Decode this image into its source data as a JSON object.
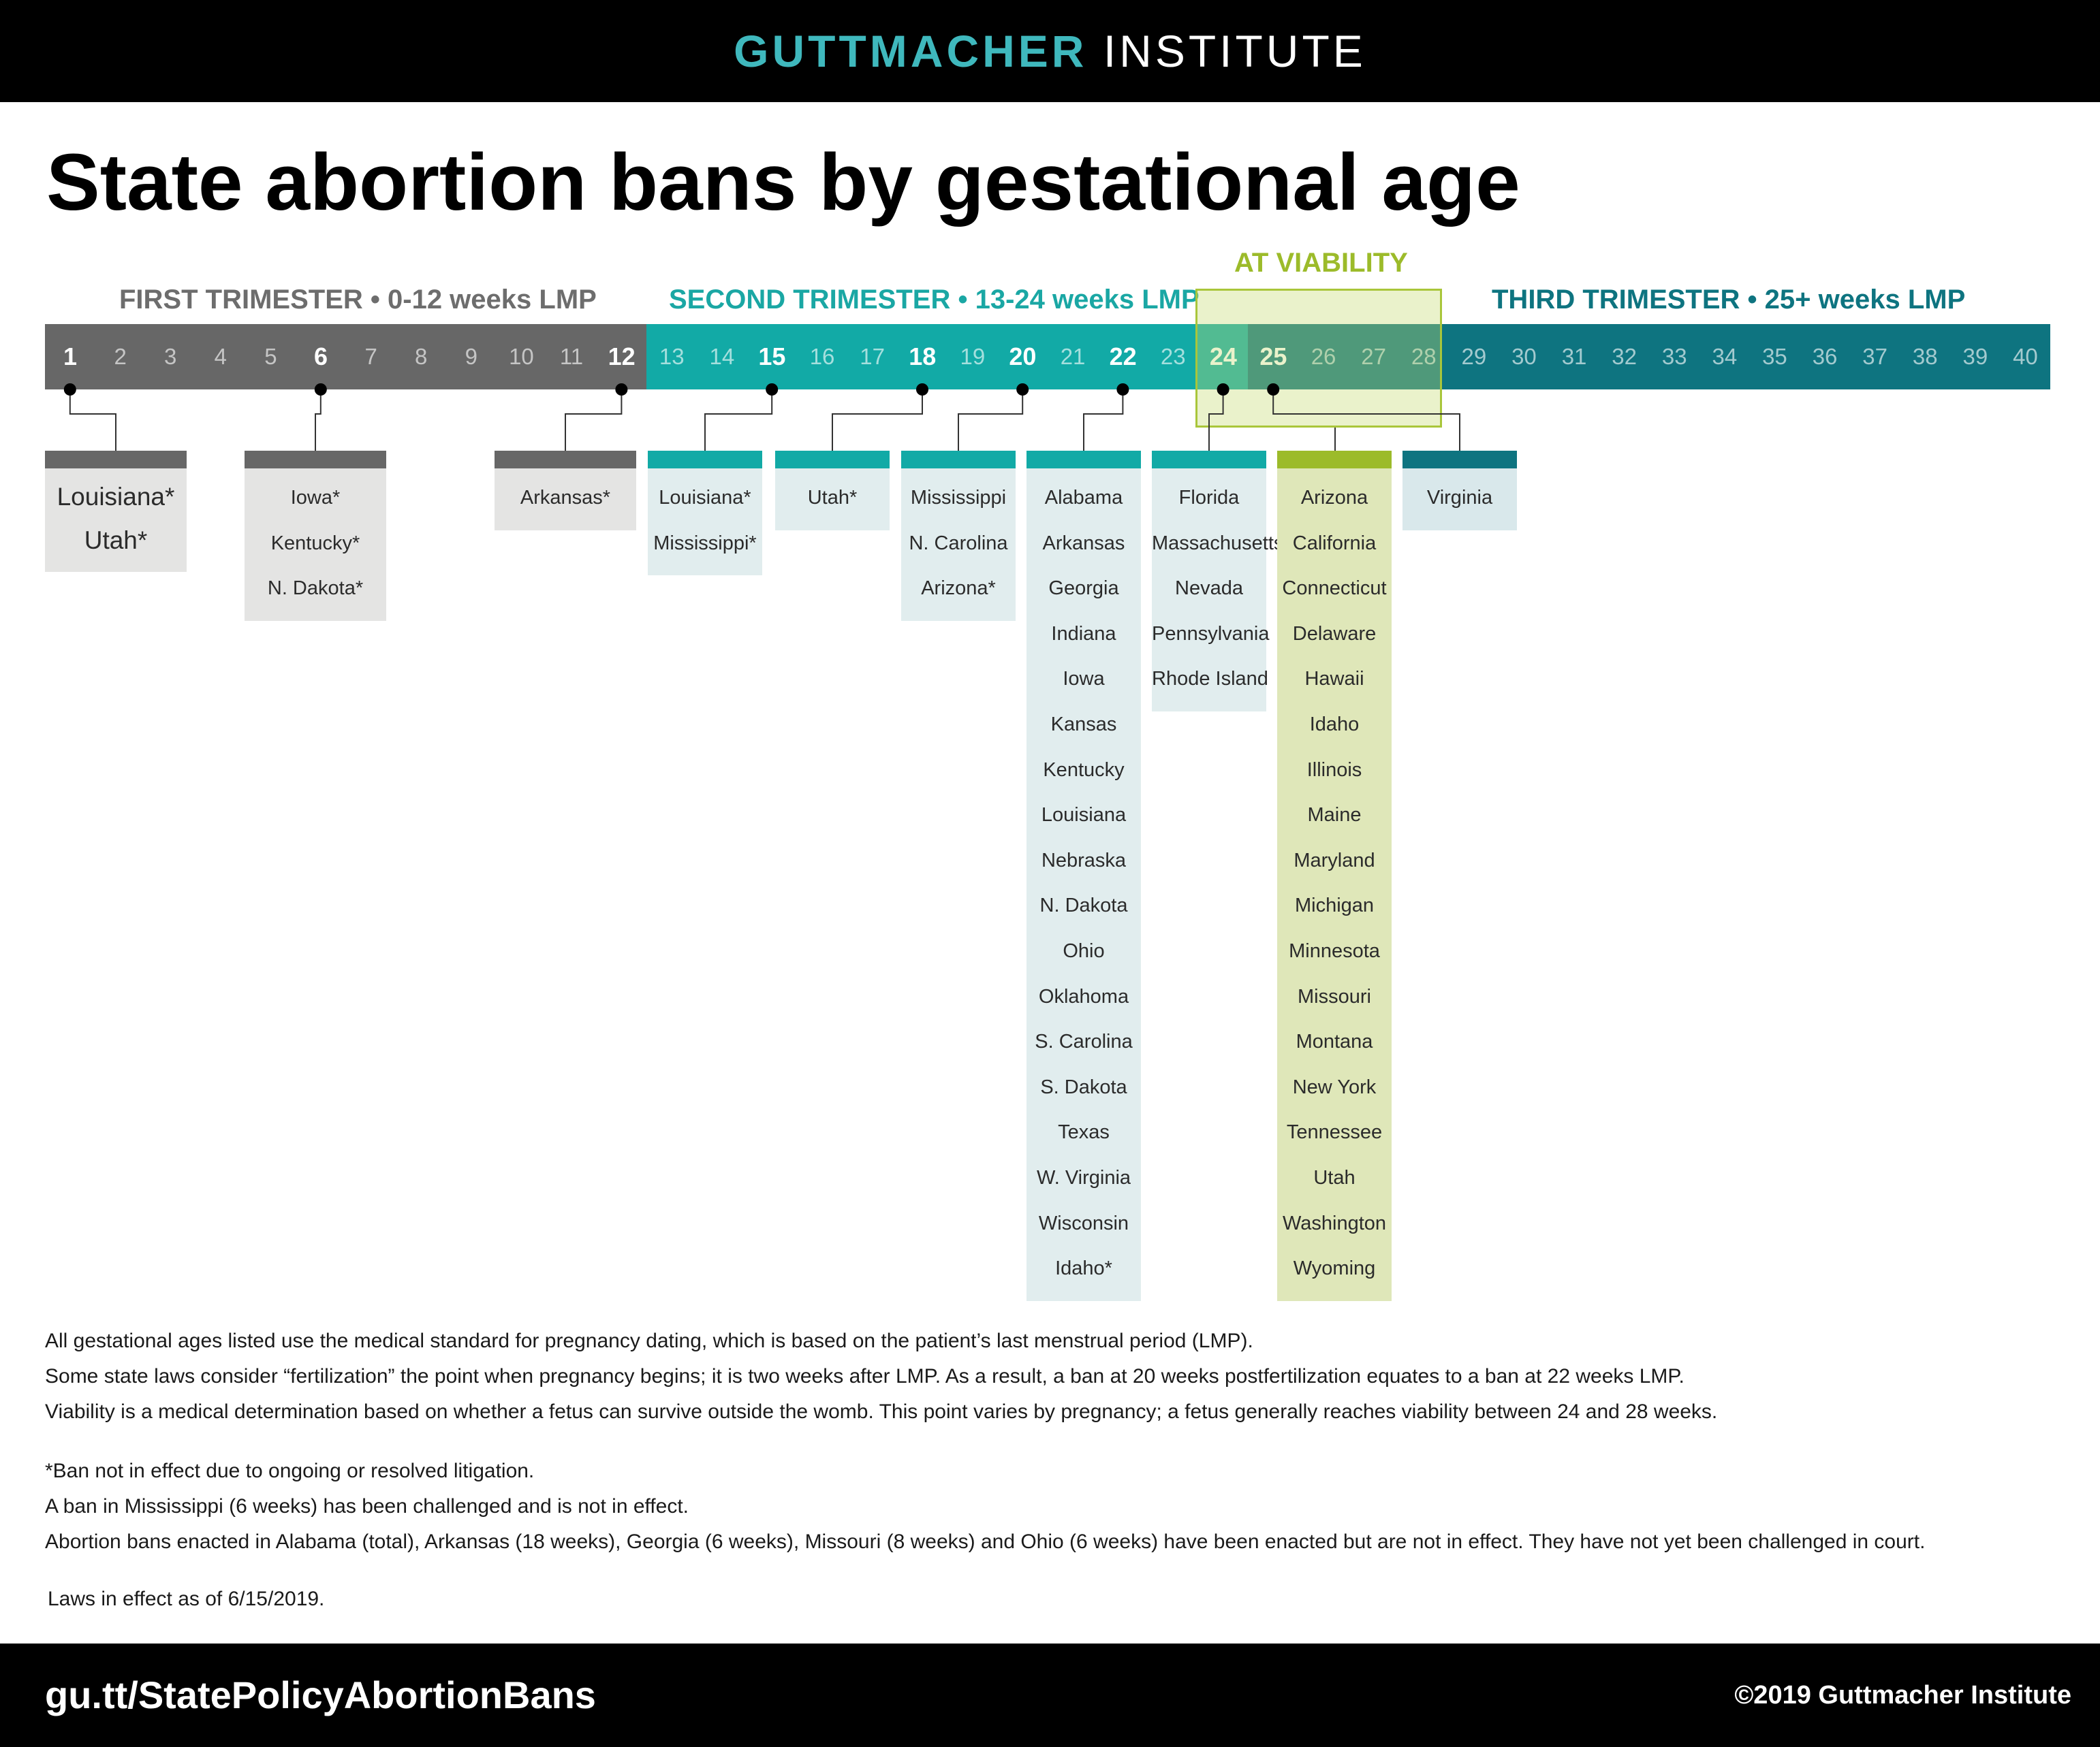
{
  "header": {
    "brand_primary": "GUTTMACHER",
    "brand_secondary": "INSTITUTE"
  },
  "title": "State abortion bans by gestational age",
  "colors": {
    "first_trimester": "#676767",
    "second_trimester": "#12aaa6",
    "third_trimester": "#0e7480",
    "viability": "#9cbb2a",
    "header_bg": "#000000",
    "brand_accent": "#3fb8bd"
  },
  "chart_data": {
    "type": "timeline",
    "title": "State abortion bans by gestational age",
    "x_unit": "weeks LMP",
    "x_range": [
      1,
      40
    ],
    "weeks": [
      1,
      2,
      3,
      4,
      5,
      6,
      7,
      8,
      9,
      10,
      11,
      12,
      13,
      14,
      15,
      16,
      17,
      18,
      19,
      20,
      21,
      22,
      23,
      24,
      25,
      26,
      27,
      28,
      29,
      30,
      31,
      32,
      33,
      34,
      35,
      36,
      37,
      38,
      39,
      40
    ],
    "highlighted_weeks": [
      1,
      6,
      12,
      15,
      18,
      20,
      22,
      24,
      25
    ],
    "trimesters": [
      {
        "name": "first",
        "label": "FIRST TRIMESTER • 0-12 weeks LMP",
        "start_week": 1,
        "end_week": 12
      },
      {
        "name": "second",
        "label": "SECOND TRIMESTER • 13-24 weeks LMP",
        "start_week": 13,
        "end_week": 24
      },
      {
        "name": "third",
        "label": "THIRD TRIMESTER • 25+ weeks LMP",
        "start_week": 25,
        "end_week": 40
      }
    ],
    "viability": {
      "label": "AT VIABILITY",
      "start_week": 24,
      "end_week": 28
    },
    "bans": [
      {
        "id": "w1",
        "week": 1,
        "group": "first",
        "states": [
          "Louisiana*",
          "Utah*"
        ]
      },
      {
        "id": "w6",
        "week": 6,
        "group": "first",
        "states": [
          "Iowa*",
          "Kentucky*",
          "N. Dakota*"
        ]
      },
      {
        "id": "w12",
        "week": 12,
        "group": "first",
        "states": [
          "Arkansas*"
        ]
      },
      {
        "id": "w15",
        "week": 15,
        "group": "second",
        "states": [
          "Louisiana*",
          "Mississippi*"
        ]
      },
      {
        "id": "w18",
        "week": 18,
        "group": "second",
        "states": [
          "Utah*"
        ]
      },
      {
        "id": "w20",
        "week": 20,
        "group": "second",
        "states": [
          "Mississippi",
          "N. Carolina",
          "Arizona*"
        ]
      },
      {
        "id": "w22",
        "week": 22,
        "group": "second",
        "states": [
          "Alabama",
          "Arkansas",
          "Georgia",
          "Indiana",
          "Iowa",
          "Kansas",
          "Kentucky",
          "Louisiana",
          "Nebraska",
          "N. Dakota",
          "Ohio",
          "Oklahoma",
          "S. Carolina",
          "S. Dakota",
          "Texas",
          "W. Virginia",
          "Wisconsin",
          "Idaho*"
        ]
      },
      {
        "id": "w24",
        "week": 24,
        "group": "second",
        "states": [
          "Florida",
          "Massachusetts",
          "Nevada",
          "Pennsylvania",
          "Rhode Island"
        ]
      },
      {
        "id": "viability",
        "week": "viability",
        "group": "viability",
        "states": [
          "Arizona",
          "California",
          "Connecticut",
          "Delaware",
          "Hawaii",
          "Idaho",
          "Illinois",
          "Maine",
          "Maryland",
          "Michigan",
          "Minnesota",
          "Missouri",
          "Montana",
          "New York",
          "Tennessee",
          "Utah",
          "Washington",
          "Wyoming"
        ]
      },
      {
        "id": "w25",
        "week": 25,
        "group": "third",
        "states": [
          "Virginia"
        ]
      }
    ]
  },
  "notes": {
    "line1": "All gestational ages listed use the medical standard for pregnancy dating, which is based on the patient’s last menstrual period (LMP).",
    "line2": "Some state laws consider “fertilization” the point when pregnancy begins; it is two weeks after LMP. As a result, a ban at 20 weeks postfertilization equates to a ban at 22 weeks LMP.",
    "line3": "Viability is a medical determination based on whether a fetus can survive outside the womb. This point varies by pregnancy; a fetus generally reaches viability between 24 and 28 weeks.",
    "line4": "*Ban not in effect due to ongoing or resolved litigation.",
    "line5": "A ban in Mississippi (6 weeks) has been challenged and is not in effect.",
    "line6": "Abortion bans enacted in Alabama (total), Arkansas (18 weeks), Georgia (6 weeks), Missouri (8 weeks) and Ohio (6 weeks) have been enacted but are not in effect. They have not yet been challenged in court.",
    "date": "Laws in effect as of 6/15/2019."
  },
  "footer": {
    "url": "gu.tt/StatePolicyAbortionBans",
    "copyright": "©2019 Guttmacher Institute"
  }
}
